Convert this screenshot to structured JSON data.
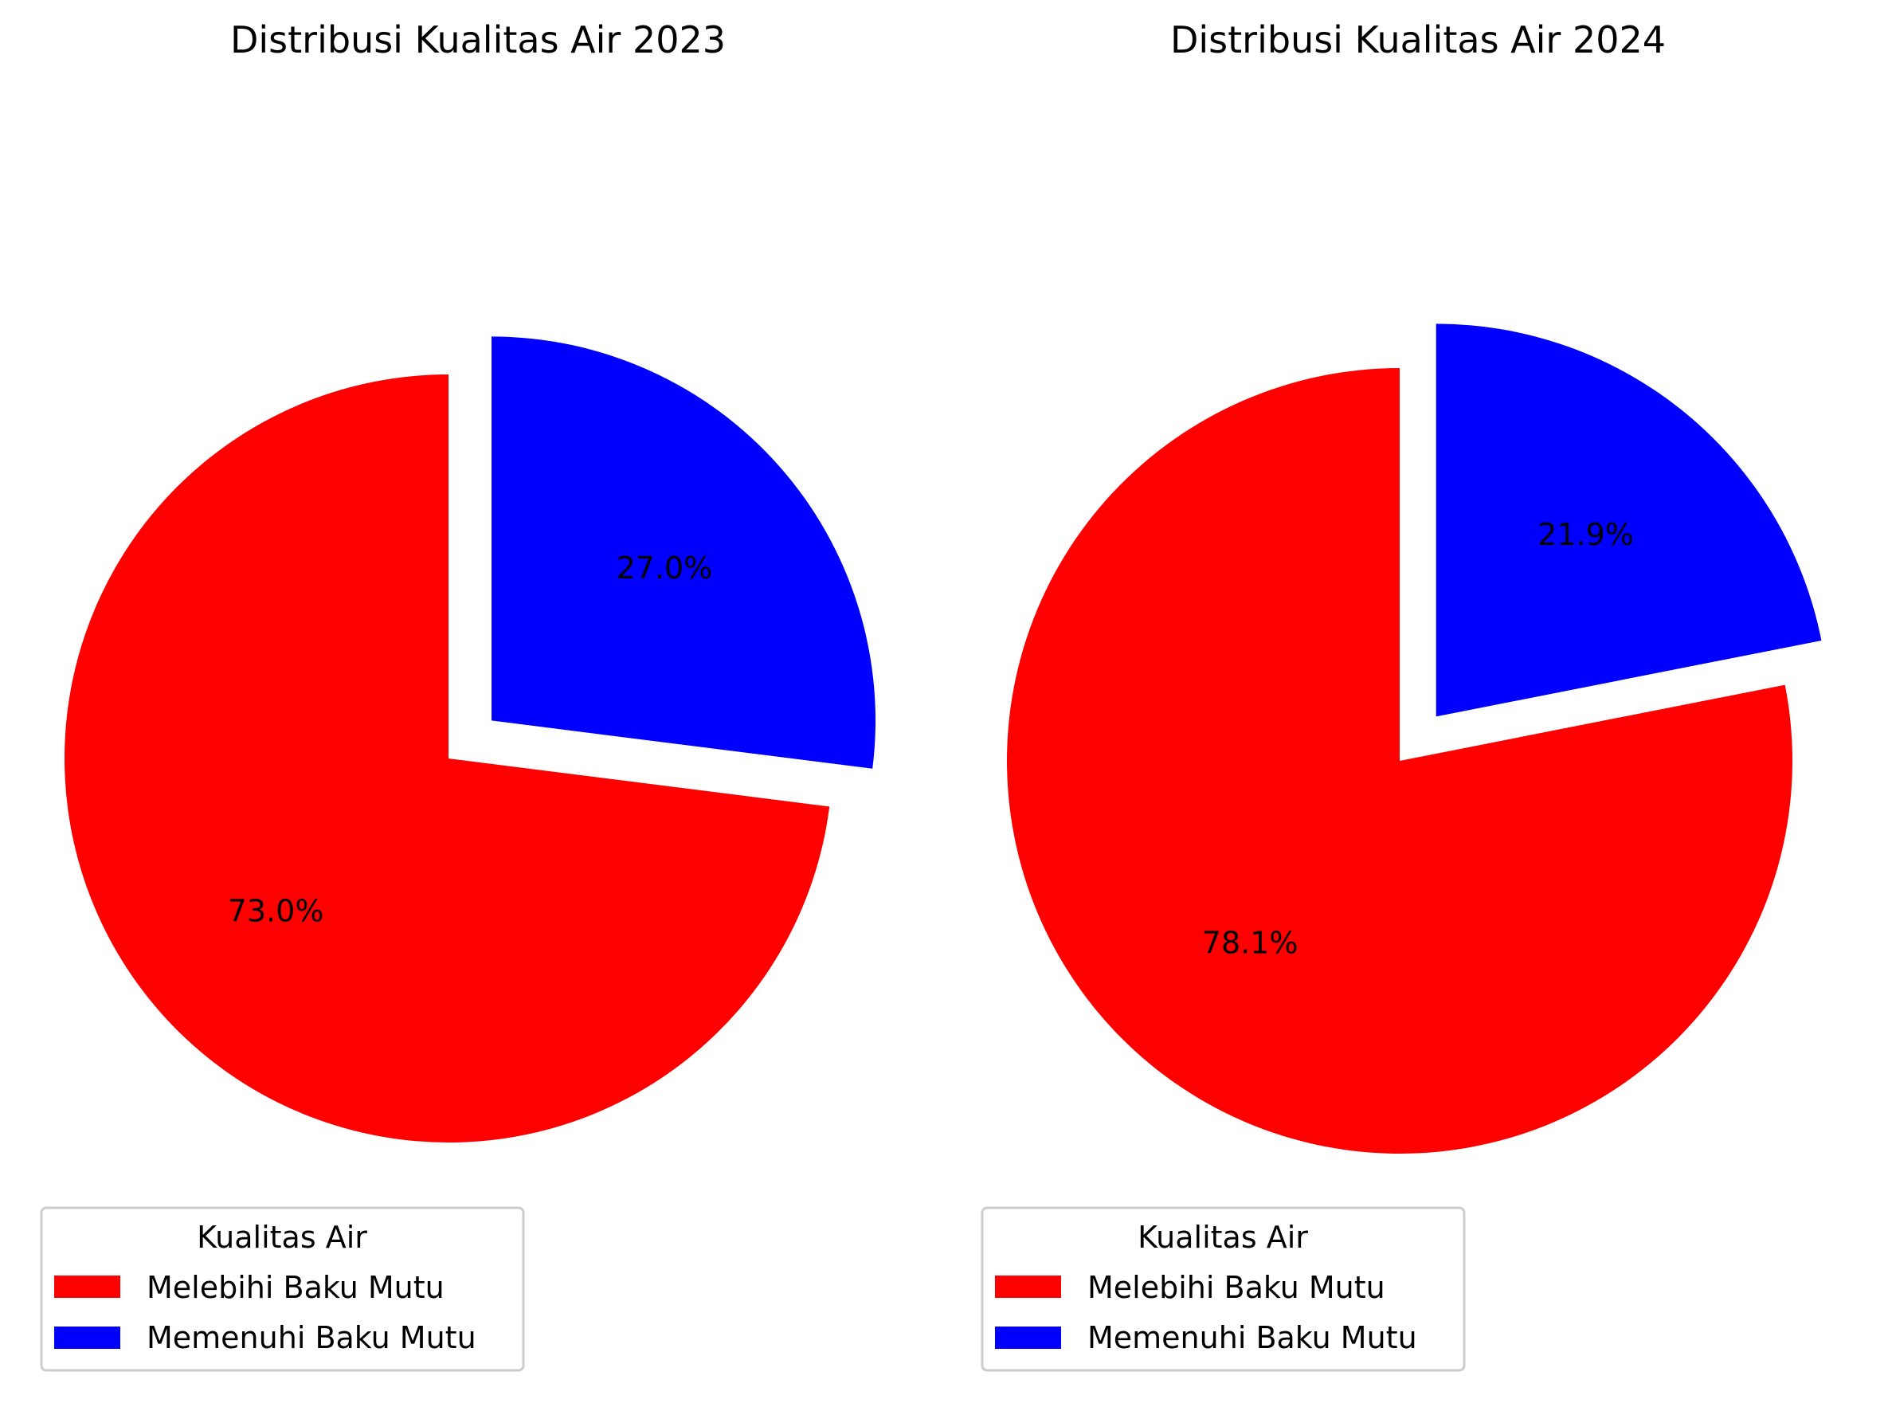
{
  "chart_data": [
    {
      "type": "pie",
      "title": "Distribusi Kualitas Air 2023",
      "legend_title": "Kualitas Air",
      "legend_placement": "bottom",
      "slices": [
        {
          "label": "Melebihi Baku Mutu",
          "value": 73.0,
          "value_label": "73.0%",
          "color": "#ff0000",
          "exploded": false
        },
        {
          "label": "Memenuhi Baku Mutu",
          "value": 27.0,
          "value_label": "27.0%",
          "color": "#0000ff",
          "exploded": true
        }
      ]
    },
    {
      "type": "pie",
      "title": "Distribusi Kualitas Air 2024",
      "legend_title": "Kualitas Air",
      "legend_placement": "bottom",
      "slices": [
        {
          "label": "Melebihi Baku Mutu",
          "value": 78.1,
          "value_label": "78.1%",
          "color": "#ff0000",
          "exploded": false
        },
        {
          "label": "Memenuhi Baku Mutu",
          "value": 21.9,
          "value_label": "21.9%",
          "color": "#0000ff",
          "exploded": true
        }
      ]
    }
  ]
}
